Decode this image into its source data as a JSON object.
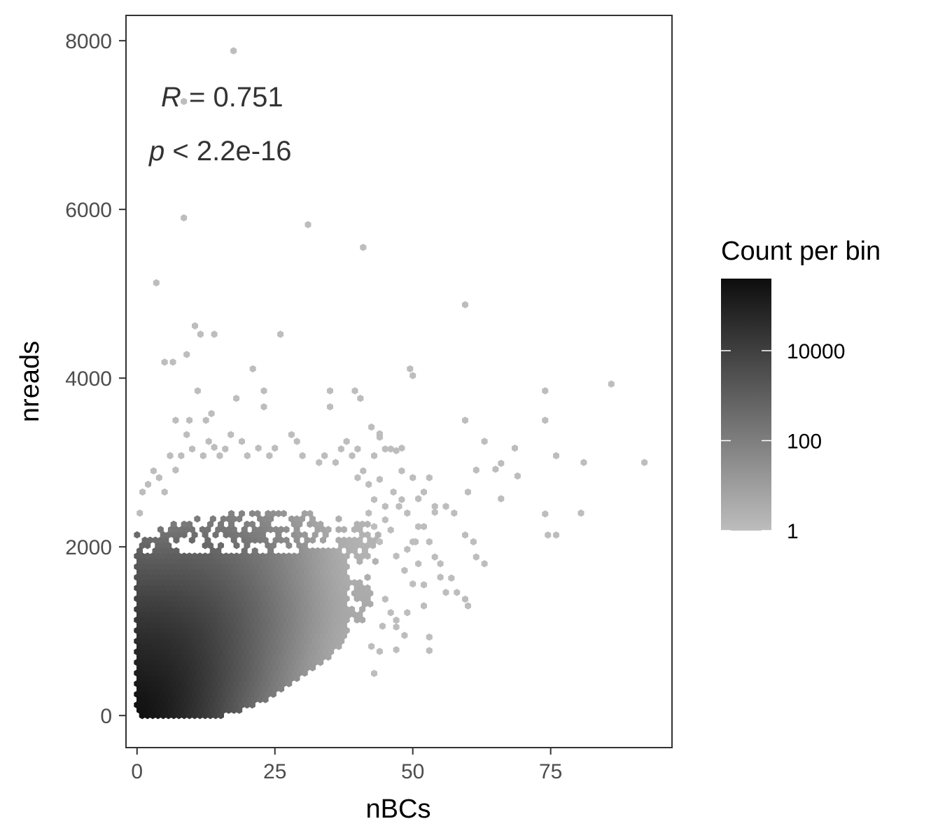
{
  "chart_data": {
    "type": "heatmap",
    "subtype": "hexbin",
    "xlabel": "nBCs",
    "ylabel": "nreads",
    "xlim": [
      -2,
      97
    ],
    "ylim": [
      -380,
      8300
    ],
    "xticks": [
      0,
      25,
      50,
      75
    ],
    "xtick_labels": [
      "0",
      "25",
      "50",
      "75"
    ],
    "yticks": [
      0,
      2000,
      4000,
      6000,
      8000
    ],
    "ytick_labels": [
      "0",
      "2000",
      "4000",
      "6000",
      "8000"
    ],
    "grid": false,
    "annotations": {
      "r_symbol": "R",
      "r_text": " = 0.751",
      "p_symbol": "p",
      "p_text": " < 2.2e-16"
    },
    "legend": {
      "title": "Count per bin",
      "scale": "log10",
      "labels": [
        "10000",
        "100",
        "1"
      ],
      "label_values": [
        10000,
        100,
        1
      ],
      "max_count": 400000,
      "color_low": "#bdbdbd",
      "color_high": "#0d0d0d",
      "placement": "right"
    },
    "dense_region": {
      "points": [
        [
          0,
          0
        ],
        [
          4,
          0
        ],
        [
          8,
          0
        ],
        [
          12,
          0
        ],
        [
          16,
          0
        ],
        [
          20,
          0
        ],
        [
          24,
          0
        ],
        [
          1,
          200
        ],
        [
          5,
          200
        ],
        [
          9,
          200
        ],
        [
          13,
          200
        ],
        [
          17,
          200
        ],
        [
          21,
          200
        ],
        [
          25,
          200
        ],
        [
          29,
          200
        ],
        [
          1,
          500
        ],
        [
          5,
          500
        ],
        [
          9,
          500
        ],
        [
          13,
          500
        ],
        [
          17,
          500
        ],
        [
          21,
          500
        ],
        [
          25,
          500
        ],
        [
          29,
          500
        ],
        [
          33,
          500
        ],
        [
          1,
          800
        ],
        [
          5,
          800
        ],
        [
          9,
          800
        ],
        [
          13,
          800
        ],
        [
          17,
          800
        ],
        [
          21,
          800
        ],
        [
          25,
          800
        ],
        [
          29,
          800
        ],
        [
          33,
          800
        ],
        [
          37,
          800
        ],
        [
          1,
          1100
        ],
        [
          5,
          1100
        ],
        [
          9,
          1100
        ],
        [
          13,
          1100
        ],
        [
          17,
          1100
        ],
        [
          21,
          1100
        ],
        [
          25,
          1100
        ],
        [
          29,
          1100
        ],
        [
          33,
          1100
        ],
        [
          37,
          1100
        ],
        [
          1,
          1400
        ],
        [
          5,
          1400
        ],
        [
          9,
          1400
        ],
        [
          13,
          1400
        ],
        [
          17,
          1400
        ],
        [
          21,
          1400
        ],
        [
          25,
          1400
        ],
        [
          29,
          1400
        ],
        [
          33,
          1400
        ],
        [
          37,
          1400
        ],
        [
          1,
          1700
        ],
        [
          5,
          1700
        ],
        [
          9,
          1700
        ],
        [
          13,
          1700
        ],
        [
          17,
          1700
        ],
        [
          21,
          1700
        ],
        [
          25,
          1700
        ],
        [
          29,
          1700
        ],
        [
          33,
          1700
        ],
        [
          37,
          1700
        ],
        [
          3,
          2000
        ],
        [
          7,
          2000
        ],
        [
          11,
          2000
        ],
        [
          15,
          2000
        ],
        [
          19,
          2000
        ],
        [
          23,
          2000
        ],
        [
          27,
          2000
        ],
        [
          31,
          2000
        ],
        [
          35,
          2000
        ],
        [
          39,
          2000
        ],
        [
          5,
          2300
        ],
        [
          9,
          2300
        ],
        [
          13,
          2300
        ],
        [
          17,
          2300
        ],
        [
          21,
          2300
        ],
        [
          25,
          2300
        ],
        [
          29,
          2300
        ],
        [
          33,
          2300
        ],
        [
          37,
          2300
        ],
        [
          7,
          2600
        ],
        [
          11,
          2600
        ],
        [
          15,
          2600
        ],
        [
          19,
          2600
        ],
        [
          23,
          2600
        ],
        [
          27,
          2600
        ],
        [
          31,
          2600
        ],
        [
          35,
          2600
        ]
      ],
      "counts": [
        400000,
        200000,
        60000,
        15000,
        3000,
        500,
        60,
        250000,
        150000,
        60000,
        15000,
        3000,
        600,
        120,
        20,
        120000,
        90000,
        45000,
        14000,
        3500,
        800,
        150,
        30,
        6,
        60000,
        50000,
        30000,
        12000,
        3500,
        900,
        200,
        50,
        10,
        3,
        25000,
        22000,
        15000,
        8000,
        3000,
        900,
        250,
        60,
        15,
        4,
        8000,
        8000,
        6000,
        4000,
        1800,
        700,
        200,
        60,
        15,
        4,
        2000,
        2500,
        2000,
        1500,
        800,
        350,
        120,
        40,
        10,
        3,
        500,
        800,
        700,
        500,
        300,
        150,
        60,
        20,
        6,
        2,
        80,
        150,
        150,
        120,
        80,
        40,
        15,
        5,
        2,
        10,
        25,
        30,
        25,
        15,
        8,
        3,
        2
      ]
    },
    "sparse_points": [
      [
        17.5,
        7880
      ],
      [
        8.5,
        7280
      ],
      [
        8.5,
        5900
      ],
      [
        31,
        5820
      ],
      [
        41,
        5550
      ],
      [
        3.5,
        5130
      ],
      [
        59.5,
        4870
      ],
      [
        10.5,
        4620
      ],
      [
        11.5,
        4520
      ],
      [
        14,
        4520
      ],
      [
        26,
        4520
      ],
      [
        5,
        4190
      ],
      [
        6.5,
        4190
      ],
      [
        9,
        4280
      ],
      [
        21,
        4110
      ],
      [
        49.5,
        4110
      ],
      [
        50,
        4030
      ],
      [
        86,
        3930
      ],
      [
        11,
        3850
      ],
      [
        23,
        3850
      ],
      [
        35,
        3850
      ],
      [
        39.5,
        3850
      ],
      [
        74,
        3850
      ],
      [
        18,
        3760
      ],
      [
        23,
        3660
      ],
      [
        35,
        3660
      ],
      [
        13.5,
        3580
      ],
      [
        40.5,
        3760
      ],
      [
        12.5,
        3500
      ],
      [
        59.5,
        3500
      ],
      [
        74,
        3500
      ],
      [
        7,
        3500
      ],
      [
        9.5,
        3500
      ],
      [
        42.5,
        3420
      ],
      [
        44,
        3340
      ],
      [
        14,
        3180
      ],
      [
        63,
        3250
      ],
      [
        68.5,
        3170
      ],
      [
        76,
        3080
      ],
      [
        81,
        3000
      ],
      [
        92,
        3000
      ],
      [
        66,
        2990
      ],
      [
        61.5,
        2910
      ],
      [
        65,
        2920
      ],
      [
        69,
        2840
      ],
      [
        56,
        2480
      ],
      [
        57.5,
        2400
      ],
      [
        66,
        2570
      ],
      [
        74,
        2390
      ],
      [
        80.5,
        2400
      ],
      [
        74.5,
        2140
      ],
      [
        76,
        2140
      ],
      [
        60,
        2650
      ],
      [
        59.5,
        2140
      ],
      [
        61,
        2060
      ],
      [
        61.5,
        1880
      ],
      [
        63,
        1800
      ],
      [
        55,
        1640
      ],
      [
        57,
        1630
      ],
      [
        56,
        1460
      ],
      [
        58,
        1460
      ],
      [
        59.5,
        1380
      ],
      [
        60,
        1300
      ],
      [
        53,
        930
      ],
      [
        53,
        770
      ],
      [
        47,
        1050
      ],
      [
        49,
        1220
      ],
      [
        44,
        760
      ],
      [
        42.5,
        820
      ],
      [
        43,
        500
      ],
      [
        47,
        780
      ],
      [
        48.5,
        950
      ],
      [
        52,
        1300
      ],
      [
        52,
        1550
      ],
      [
        50,
        1560
      ],
      [
        48.5,
        1720
      ],
      [
        47,
        1890
      ],
      [
        50.5,
        2060
      ],
      [
        52,
        2240
      ],
      [
        54,
        2480
      ],
      [
        53,
        2820
      ],
      [
        52,
        2650
      ],
      [
        50,
        2820
      ],
      [
        54,
        2410
      ],
      [
        48,
        2900
      ],
      [
        47,
        3140
      ],
      [
        45,
        3160
      ],
      [
        48,
        2560
      ],
      [
        51,
        2240
      ],
      [
        53,
        2060
      ],
      [
        50,
        2060
      ],
      [
        54,
        1880
      ],
      [
        55,
        1800
      ],
      [
        51,
        1800
      ],
      [
        49,
        1970
      ],
      [
        46,
        1220
      ],
      [
        44.5,
        1060
      ],
      [
        45,
        1380
      ],
      [
        47,
        1130
      ],
      [
        46,
        2200
      ],
      [
        49,
        2400
      ],
      [
        46.5,
        2650
      ],
      [
        47.5,
        2480
      ],
      [
        51,
        2570
      ],
      [
        46,
        3160
      ],
      [
        48,
        3170
      ],
      [
        44,
        3300
      ],
      [
        43,
        3080
      ],
      [
        40,
        3160
      ],
      [
        39,
        3080
      ],
      [
        37,
        3160
      ],
      [
        38,
        3250
      ],
      [
        36,
        3000
      ],
      [
        34,
        3080
      ],
      [
        33,
        3000
      ],
      [
        30,
        3080
      ],
      [
        29,
        3250
      ],
      [
        28,
        3330
      ],
      [
        25,
        3170
      ],
      [
        24,
        3080
      ],
      [
        22,
        3170
      ],
      [
        20,
        3080
      ],
      [
        19,
        3250
      ],
      [
        17,
        3330
      ],
      [
        16,
        3160
      ],
      [
        15,
        3080
      ],
      [
        13,
        3250
      ],
      [
        12,
        3080
      ],
      [
        10,
        3160
      ],
      [
        9,
        3330
      ],
      [
        8,
        3080
      ],
      [
        7,
        2910
      ],
      [
        6,
        3080
      ],
      [
        5,
        2650
      ],
      [
        4,
        2820
      ],
      [
        3,
        2900
      ],
      [
        2,
        2740
      ],
      [
        1,
        2650
      ],
      [
        0.5,
        2400
      ],
      [
        42,
        2400
      ],
      [
        43,
        2240
      ],
      [
        44,
        2060
      ],
      [
        45,
        2480
      ],
      [
        42,
        2740
      ],
      [
        41,
        2900
      ],
      [
        40,
        2820
      ],
      [
        43,
        2560
      ],
      [
        44,
        2800
      ],
      [
        45,
        2320
      ]
    ]
  }
}
